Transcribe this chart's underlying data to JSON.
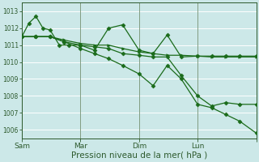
{
  "bg_color": "#cce8e8",
  "grid_color": "#ffffff",
  "line_color": "#1a6b1a",
  "xlabel": "Pression niveau de la mer( hPa )",
  "xlabel_fontsize": 7.5,
  "ylim": [
    1005.5,
    1013.5
  ],
  "yticks": [
    1006,
    1007,
    1008,
    1009,
    1010,
    1011,
    1012,
    1013
  ],
  "xlim": [
    0,
    100
  ],
  "xtick_positions": [
    0,
    25,
    50,
    75,
    100
  ],
  "xtick_labels": [
    "Sam",
    "Mar",
    "Dim",
    "Lun",
    ""
  ],
  "s1_x": [
    0,
    6,
    12,
    18,
    25,
    31,
    37,
    43,
    50,
    56,
    62,
    68,
    75,
    81,
    87,
    93,
    100
  ],
  "s1_y": [
    1011.5,
    1011.5,
    1011.5,
    1011.3,
    1011.1,
    1011.0,
    1011.0,
    1010.8,
    1010.6,
    1010.5,
    1010.4,
    1010.4,
    1010.35,
    1010.3,
    1010.3,
    1010.3,
    1010.3
  ],
  "s2_x": [
    0,
    3,
    6,
    9,
    12,
    16,
    20,
    25,
    31,
    37,
    43,
    50,
    56,
    62,
    68,
    75,
    81,
    87,
    93,
    100
  ],
  "s2_y": [
    1011.5,
    1012.3,
    1012.7,
    1012.0,
    1011.9,
    1011.0,
    1011.0,
    1011.0,
    1010.7,
    1012.0,
    1012.2,
    1010.7,
    1010.5,
    1011.6,
    1010.3,
    1010.35,
    1010.35,
    1010.35,
    1010.35,
    1010.35
  ],
  "s3_x": [
    0,
    6,
    12,
    18,
    25,
    31,
    37,
    43,
    50,
    56,
    62,
    68,
    75,
    81,
    87,
    93,
    100
  ],
  "s3_y": [
    1011.5,
    1011.5,
    1011.5,
    1011.2,
    1010.8,
    1010.5,
    1010.2,
    1009.8,
    1009.3,
    1008.6,
    1009.8,
    1009.0,
    1007.5,
    1007.3,
    1006.9,
    1006.5,
    1005.8
  ],
  "s4_x": [
    0,
    6,
    12,
    18,
    25,
    31,
    37,
    43,
    50,
    56,
    62,
    68,
    75,
    81,
    87,
    93,
    100
  ],
  "s4_y": [
    1011.5,
    1011.5,
    1011.5,
    1011.2,
    1011.0,
    1010.9,
    1010.8,
    1010.5,
    1010.4,
    1010.3,
    1010.3,
    1009.2,
    1008.0,
    1007.4,
    1007.6,
    1007.5,
    1007.5
  ]
}
